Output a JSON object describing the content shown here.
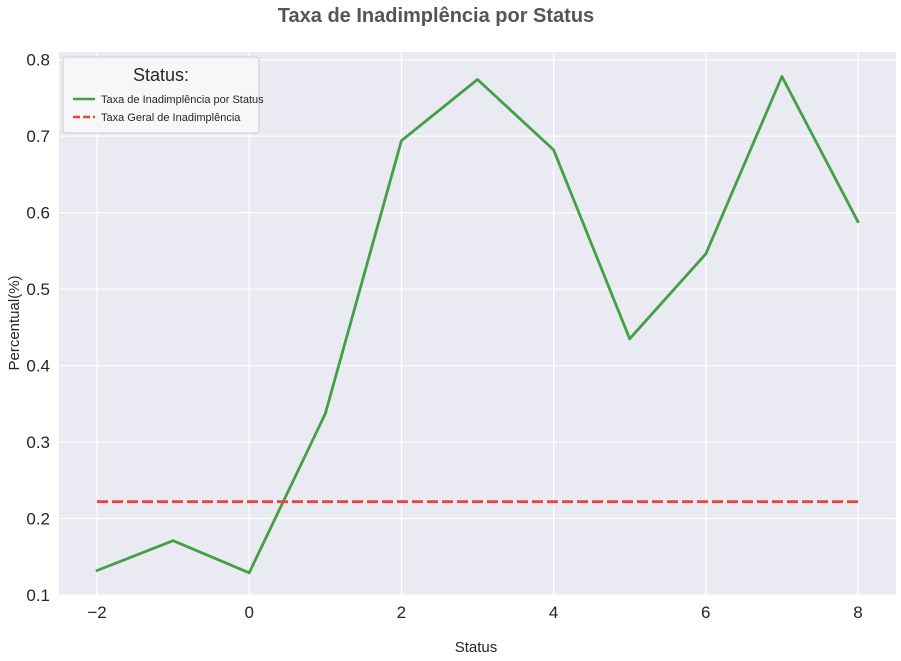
{
  "chart_data": {
    "type": "line",
    "title": "Taxa de Inadimplência por Status",
    "xlabel": "Status",
    "ylabel": "Percentual(%)",
    "xlim": [
      -2.5,
      8.5
    ],
    "ylim": [
      0.1,
      0.81
    ],
    "xticks": [
      -2,
      0,
      2,
      4,
      6,
      8
    ],
    "xtick_labels": [
      "−2",
      "0",
      "2",
      "4",
      "6",
      "8"
    ],
    "yticks": [
      0.1,
      0.2,
      0.3,
      0.4,
      0.5,
      0.6,
      0.7,
      0.8
    ],
    "ytick_labels": [
      "0.1",
      "0.2",
      "0.3",
      "0.4",
      "0.5",
      "0.6",
      "0.7",
      "0.8"
    ],
    "grid": true,
    "legend": {
      "title": "Status:",
      "position": "top-left"
    },
    "series": [
      {
        "name": "Taxa de Inadimplência por Status",
        "style": "solid",
        "color": "#43a047",
        "x": [
          -2,
          -1,
          0,
          1,
          2,
          3,
          4,
          5,
          6,
          7,
          8
        ],
        "y": [
          0.132,
          0.171,
          0.129,
          0.337,
          0.694,
          0.774,
          0.682,
          0.435,
          0.546,
          0.778,
          0.588
        ]
      },
      {
        "name": "Taxa Geral de Inadimplência",
        "style": "dashed",
        "color": "#e8453c",
        "x": [
          -2,
          8
        ],
        "y": [
          0.222,
          0.222
        ]
      }
    ]
  }
}
